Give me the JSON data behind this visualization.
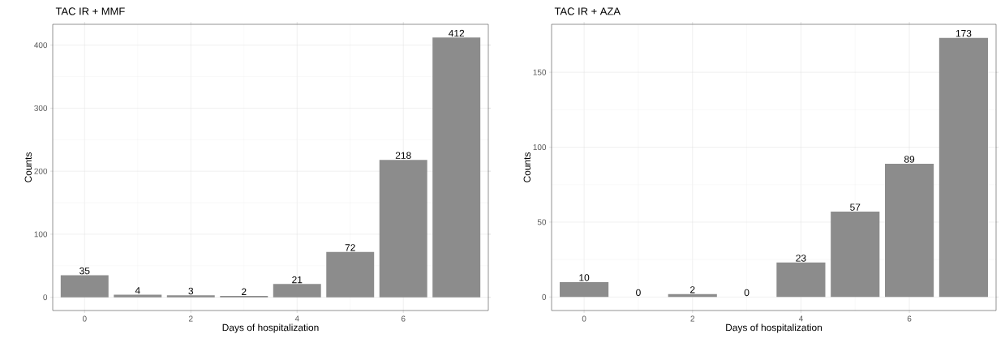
{
  "chart_data": [
    {
      "type": "bar",
      "title": "TAC IR + MMF",
      "xlabel": "Days of hospitalization",
      "ylabel": "Counts",
      "x": [
        0,
        1,
        2,
        3,
        4,
        5,
        6,
        7
      ],
      "values": [
        35,
        4,
        3,
        2,
        21,
        72,
        218,
        412
      ],
      "color": "#8c8c8c",
      "xlim": [
        -0.6,
        7.6
      ],
      "xticks": [
        0,
        2,
        4,
        6
      ],
      "ylim": [
        -21,
        433
      ],
      "yticks": [
        0,
        100,
        200,
        300,
        400
      ],
      "grid": true,
      "data_labels": true
    },
    {
      "type": "bar",
      "title": "TAC IR + AZA",
      "xlabel": "Days of hospitalization",
      "ylabel": "Counts",
      "x": [
        0,
        1,
        2,
        3,
        4,
        5,
        6,
        7
      ],
      "values": [
        10,
        0,
        2,
        0,
        23,
        57,
        89,
        173
      ],
      "color": "#8c8c8c",
      "xlim": [
        -0.6,
        7.6
      ],
      "xticks": [
        0,
        2,
        4,
        6
      ],
      "ylim": [
        -9,
        182
      ],
      "yticks": [
        0,
        50,
        100,
        150
      ],
      "grid": true,
      "data_labels": true
    }
  ]
}
